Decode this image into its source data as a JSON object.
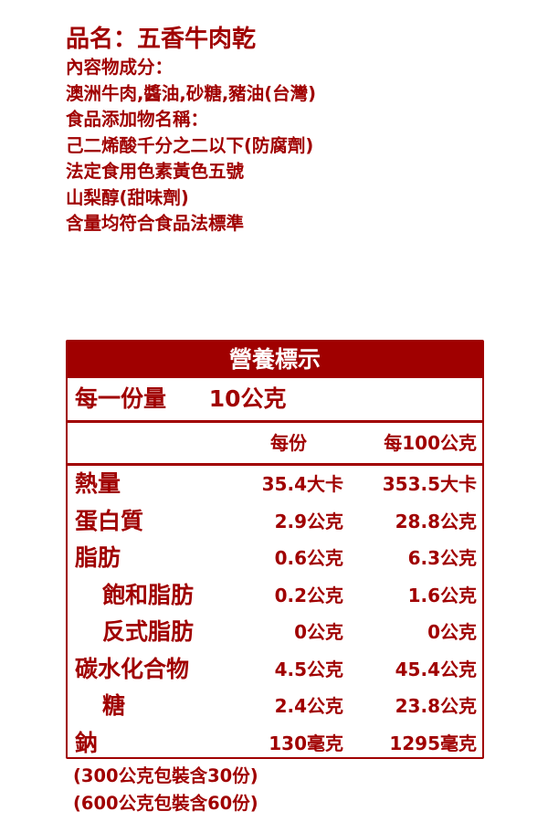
{
  "info": {
    "title": "品名：五香牛肉乾",
    "lines": [
      "內容物成分：",
      "澳洲牛肉,醬油,砂糖,豬油(台灣)",
      "食品添加物名稱：",
      "己二烯酸千分之二以下(防腐劑)",
      "法定食用色素黃色五號",
      "山梨醇(甜味劑)",
      "含量均符合食品法標準"
    ]
  },
  "nutrition": {
    "title": "營養標示",
    "serving_label": "每一份量",
    "serving_value": "10公克",
    "col_per_serving": "每份",
    "col_per_100g": "每100公克",
    "rows": [
      {
        "label": "熱量",
        "per_serving": "35.4大卡",
        "per_100g": "353.5大卡",
        "indent": false
      },
      {
        "label": "蛋白質",
        "per_serving": "2.9公克",
        "per_100g": "28.8公克",
        "indent": false
      },
      {
        "label": "脂肪",
        "per_serving": "0.6公克",
        "per_100g": "6.3公克",
        "indent": false
      },
      {
        "label": "飽和脂肪",
        "per_serving": "0.2公克",
        "per_100g": "1.6公克",
        "indent": true
      },
      {
        "label": "反式脂肪",
        "per_serving": "0公克",
        "per_100g": "0公克",
        "indent": true
      },
      {
        "label": "碳水化合物",
        "per_serving": "4.5公克",
        "per_100g": "45.4公克",
        "indent": false
      },
      {
        "label": "糖",
        "per_serving": "2.4公克",
        "per_100g": "23.8公克",
        "indent": true
      },
      {
        "label": "鈉",
        "per_serving": "130毫克",
        "per_100g": "1295毫克",
        "indent": false
      }
    ]
  },
  "footnotes": [
    "(300公克包裝含30份)",
    "(600公克包裝含60份)"
  ],
  "colors": {
    "primary": "#a00000",
    "background": "#ffffff"
  }
}
